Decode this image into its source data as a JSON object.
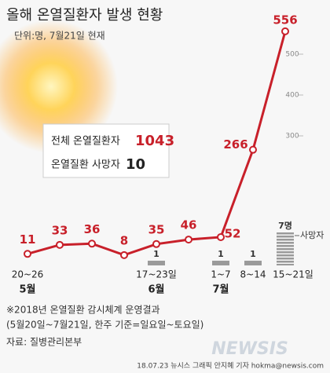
{
  "chart_data": {
    "type": "line",
    "title": "올해 온열질환자 발생 현황",
    "subtitle": "단위:명, 7월21일 현재",
    "categories": [
      "20~26",
      null,
      null,
      null,
      "17~23일",
      null,
      "1~7",
      "8~14",
      "15~21일"
    ],
    "month_labels": [
      "5월",
      null,
      null,
      null,
      "6월",
      null,
      "7월",
      null,
      null
    ],
    "series": [
      {
        "color": "#c8202a",
        "values": [
          11,
          33,
          36,
          8,
          35,
          46,
          52,
          266,
          556
        ]
      },
      {
        "name": "사망자",
        "type": "bar",
        "color": "#9a9a9a",
        "values": [
          0,
          0,
          0,
          0,
          1,
          0,
          1,
          1,
          7
        ],
        "value_labels": [
          null,
          null,
          null,
          null,
          "1",
          null,
          "1",
          "1",
          "7명"
        ]
      }
    ],
    "ylim": [
      0,
      600
    ],
    "yticks": [
      300,
      400,
      500
    ],
    "summary": [
      {
        "label": "전체 온열질환자",
        "value": 1043
      },
      {
        "label": "온열질환 사망자",
        "value": 10
      }
    ],
    "notes": [
      "※2018년 온열질환 감시체계 운영결과",
      "(5월20일~7월21일, 한주 기준=일요일~토요일)",
      "자료: 질병관리본부"
    ],
    "credit": "18.07.23 뉴시스 그래픽 안지혜 기자 hokma@newsis.com",
    "logo": "NEWSIS"
  }
}
